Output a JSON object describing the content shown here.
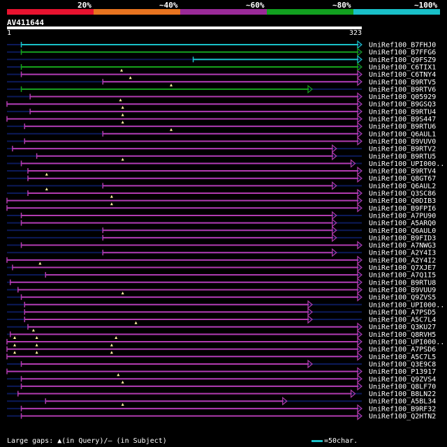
{
  "legend": {
    "segments": [
      {
        "label": "20%",
        "color": "#e8132f"
      },
      {
        "label": "~40%",
        "color": "#e87420"
      },
      {
        "label": "~60%",
        "color": "#9a2a98"
      },
      {
        "label": "~80%",
        "color": "#12a020"
      },
      {
        "label": "~100%",
        "color": "#19c0c8"
      }
    ]
  },
  "query": {
    "name": "AV411644",
    "start": "1",
    "end": "323",
    "length": 323
  },
  "colors": {
    "magenta": "#b23bb0",
    "green": "#16a21b",
    "cyan": "#19c0c8",
    "navy": "#0c1a5a",
    "gap": "#fff0a0"
  },
  "hits": [
    {
      "label": "UniRef100_B7FHJ0",
      "start": 14,
      "end": 323,
      "color": "cyan",
      "gaps": []
    },
    {
      "label": "UniRef100_B7FFG6",
      "start": 14,
      "end": 323,
      "color": "green",
      "gaps": []
    },
    {
      "label": "UniRef100_Q9FSZ9",
      "start": 170,
      "end": 323,
      "color": "cyan",
      "gaps": []
    },
    {
      "label": "UniRef100_C6TIX1",
      "start": 14,
      "end": 323,
      "color": "green",
      "gaps": []
    },
    {
      "label": "UniRef100_C6TNY4",
      "start": 14,
      "end": 323,
      "color": "magenta",
      "gaps": [
        105
      ]
    },
    {
      "label": "UniRef100_B9RTV5",
      "start": 88,
      "end": 323,
      "color": "magenta",
      "gaps": [
        113
      ]
    },
    {
      "label": "UniRef100_B9RTV6",
      "start": 14,
      "end": 278,
      "color": "green",
      "gaps": [
        150
      ]
    },
    {
      "label": "UniRef100_Q05929",
      "start": 22,
      "end": 323,
      "color": "magenta",
      "gaps": []
    },
    {
      "label": "UniRef100_B9GSQ3",
      "start": 1,
      "end": 323,
      "color": "magenta",
      "gaps": [
        104
      ]
    },
    {
      "label": "UniRef100_B9RTU4",
      "start": 22,
      "end": 323,
      "color": "magenta",
      "gaps": [
        106
      ]
    },
    {
      "label": "UniRef100_B9S447",
      "start": 1,
      "end": 323,
      "color": "magenta",
      "gaps": [
        106
      ]
    },
    {
      "label": "UniRef100_B9RTU6",
      "start": 17,
      "end": 323,
      "color": "magenta",
      "gaps": [
        106
      ]
    },
    {
      "label": "UniRef100_Q6AUL1",
      "start": 88,
      "end": 323,
      "color": "magenta",
      "gaps": [
        150
      ]
    },
    {
      "label": "UniRef100_B9VUV0",
      "start": 17,
      "end": 323,
      "color": "magenta",
      "gaps": []
    },
    {
      "label": "UniRef100_B9RTV2",
      "start": 6,
      "end": 300,
      "color": "magenta",
      "gaps": []
    },
    {
      "label": "UniRef100_B9RTU5",
      "start": 28,
      "end": 300,
      "color": "magenta",
      "gaps": []
    },
    {
      "label": "UniRef100_UPI000..",
      "start": 14,
      "end": 317,
      "color": "magenta",
      "gaps": [
        106
      ]
    },
    {
      "label": "UniRef100_B9RTV4",
      "start": 20,
      "end": 323,
      "color": "magenta",
      "gaps": []
    },
    {
      "label": "UniRef100_Q8GT67",
      "start": 20,
      "end": 323,
      "color": "magenta",
      "gaps": [
        37
      ]
    },
    {
      "label": "UniRef100_Q6AUL2",
      "start": 88,
      "end": 300,
      "color": "magenta",
      "gaps": []
    },
    {
      "label": "UniRef100_Q3SC86",
      "start": 20,
      "end": 323,
      "color": "magenta",
      "gaps": [
        37
      ]
    },
    {
      "label": "UniRef100_Q0DIB3",
      "start": 1,
      "end": 323,
      "color": "magenta",
      "gaps": [
        96
      ]
    },
    {
      "label": "UniRef100_B9FPI6",
      "start": 1,
      "end": 323,
      "color": "magenta",
      "gaps": [
        96
      ]
    },
    {
      "label": "UniRef100_A7PU90",
      "start": 14,
      "end": 300,
      "color": "magenta",
      "gaps": []
    },
    {
      "label": "UniRef100_A5ARQ0",
      "start": 14,
      "end": 300,
      "color": "magenta",
      "gaps": []
    },
    {
      "label": "UniRef100_Q6AUL0",
      "start": 88,
      "end": 300,
      "color": "magenta",
      "gaps": []
    },
    {
      "label": "UniRef100_B9FID3",
      "start": 88,
      "end": 300,
      "color": "magenta",
      "gaps": []
    },
    {
      "label": "UniRef100_A7NWG3",
      "start": 14,
      "end": 323,
      "color": "magenta",
      "gaps": []
    },
    {
      "label": "UniRef100_A2Y4I3",
      "start": 88,
      "end": 300,
      "color": "magenta",
      "gaps": []
    },
    {
      "label": "UniRef100_A2Y4I2",
      "start": 1,
      "end": 323,
      "color": "magenta",
      "gaps": []
    },
    {
      "label": "UniRef100_Q7XJE7",
      "start": 6,
      "end": 323,
      "color": "magenta",
      "gaps": [
        31
      ]
    },
    {
      "label": "UniRef100_A7Q1I5",
      "start": 36,
      "end": 323,
      "color": "magenta",
      "gaps": []
    },
    {
      "label": "UniRef100_B9RTU8",
      "start": 4,
      "end": 323,
      "color": "magenta",
      "gaps": []
    },
    {
      "label": "UniRef100_B9VUU9",
      "start": 11,
      "end": 323,
      "color": "magenta",
      "gaps": []
    },
    {
      "label": "UniRef100_Q9ZVS5",
      "start": 14,
      "end": 323,
      "color": "magenta",
      "gaps": [
        106
      ]
    },
    {
      "label": "UniRef100_UPI000..",
      "start": 17,
      "end": 278,
      "color": "magenta",
      "gaps": []
    },
    {
      "label": "UniRef100_A7PSD5",
      "start": 17,
      "end": 278,
      "color": "magenta",
      "gaps": []
    },
    {
      "label": "UniRef100_A5C7L4",
      "start": 17,
      "end": 278,
      "color": "magenta",
      "gaps": []
    },
    {
      "label": "UniRef100_Q3KU27",
      "start": 20,
      "end": 323,
      "color": "magenta",
      "gaps": [
        118
      ]
    },
    {
      "label": "UniRef100_Q8RVH5",
      "start": 4,
      "end": 323,
      "color": "magenta",
      "gaps": [
        25
      ]
    },
    {
      "label": "UniRef100_UPI000..",
      "start": 1,
      "end": 323,
      "color": "magenta",
      "gaps": [
        8,
        28,
        100
      ]
    },
    {
      "label": "UniRef100_A7PSD6",
      "start": 1,
      "end": 323,
      "color": "magenta",
      "gaps": [
        8,
        28,
        96
      ]
    },
    {
      "label": "UniRef100_A5C7L5",
      "start": 1,
      "end": 323,
      "color": "magenta",
      "gaps": [
        8,
        28,
        96
      ]
    },
    {
      "label": "UniRef100_Q3E9C8",
      "start": 14,
      "end": 278,
      "color": "magenta",
      "gaps": []
    },
    {
      "label": "UniRef100_P13917",
      "start": 1,
      "end": 323,
      "color": "magenta",
      "gaps": []
    },
    {
      "label": "UniRef100_Q9ZVS4",
      "start": 14,
      "end": 323,
      "color": "magenta",
      "gaps": [
        102
      ]
    },
    {
      "label": "UniRef100_Q8LF70",
      "start": 14,
      "end": 323,
      "color": "magenta",
      "gaps": [
        106
      ]
    },
    {
      "label": "UniRef100_B8LN22",
      "start": 11,
      "end": 317,
      "color": "magenta",
      "gaps": []
    },
    {
      "label": "UniRef100_A5BL34",
      "start": 36,
      "end": 255,
      "color": "magenta",
      "gaps": []
    },
    {
      "label": "UniRef100_B9RF32",
      "start": 14,
      "end": 323,
      "color": "magenta",
      "gaps": [
        106
      ]
    },
    {
      "label": "UniRef100_Q2HTN2",
      "start": 14,
      "end": 323,
      "color": "magenta",
      "gaps": []
    }
  ],
  "footer": {
    "text": "Large gaps: ▲(in Query)/― (in Subject)"
  },
  "scale": {
    "text": "=50char."
  }
}
